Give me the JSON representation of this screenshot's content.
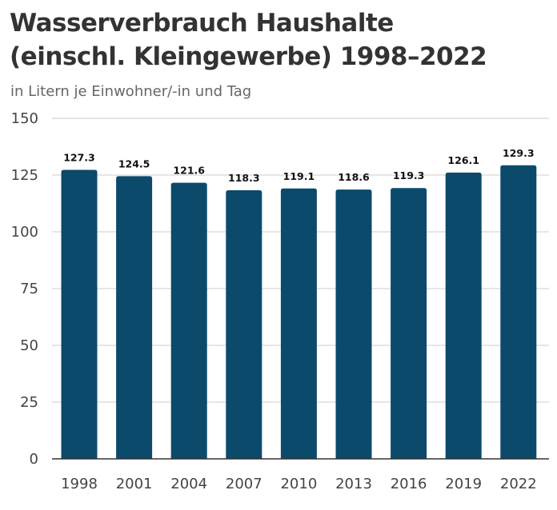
{
  "chart_data": {
    "type": "bar",
    "title_line1": "Wasserverbrauch Haushalte",
    "title_line2": "(einschl. Kleingewerbe) 1998–2022",
    "subtitle": "in Litern je Einwohner/-in und Tag",
    "categories": [
      "1998",
      "2001",
      "2004",
      "2007",
      "2010",
      "2013",
      "2016",
      "2019",
      "2022"
    ],
    "values": [
      127.3,
      124.5,
      121.6,
      118.3,
      119.1,
      118.6,
      119.3,
      126.1,
      129.3
    ],
    "value_labels": [
      "127.3",
      "124.5",
      "121.6",
      "118.3",
      "119.1",
      "118.6",
      "119.3",
      "126.1",
      "129.3"
    ],
    "yticks": [
      0,
      25,
      50,
      75,
      100,
      125,
      150
    ],
    "ylim": [
      0,
      150
    ],
    "grid": true,
    "bar_color": "#0b4a6b",
    "grid_color": "#cccccc"
  }
}
